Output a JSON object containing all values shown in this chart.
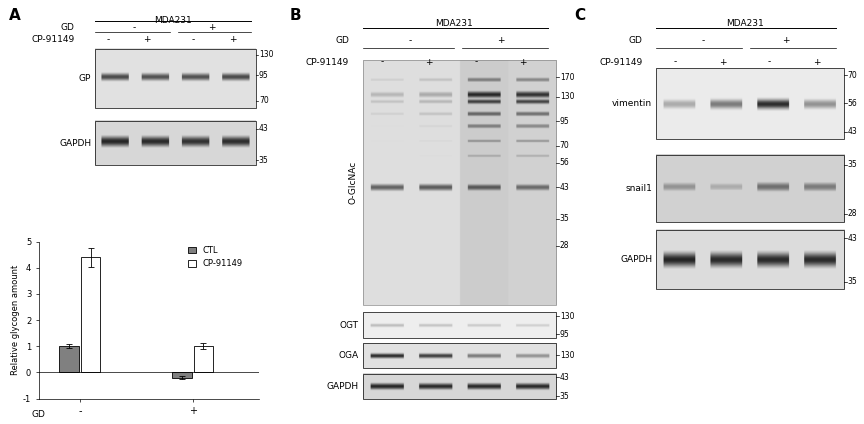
{
  "fig_width": 8.64,
  "fig_height": 4.24,
  "background_color": "#ffffff",
  "panel_A": {
    "bar_ctl_values": [
      1.0,
      -0.2
    ],
    "bar_cp_values": [
      4.4,
      1.0
    ],
    "bar_ctl_errors": [
      0.08,
      0.06
    ],
    "bar_cp_errors": [
      0.35,
      0.12
    ],
    "bar_ctl_color": "#808080",
    "bar_cp_color": "#ffffff",
    "ylabel": "Relative glycogen amount",
    "ylim": [
      -1,
      5
    ],
    "yticks": [
      -1,
      0,
      1,
      2,
      3,
      4,
      5
    ]
  }
}
